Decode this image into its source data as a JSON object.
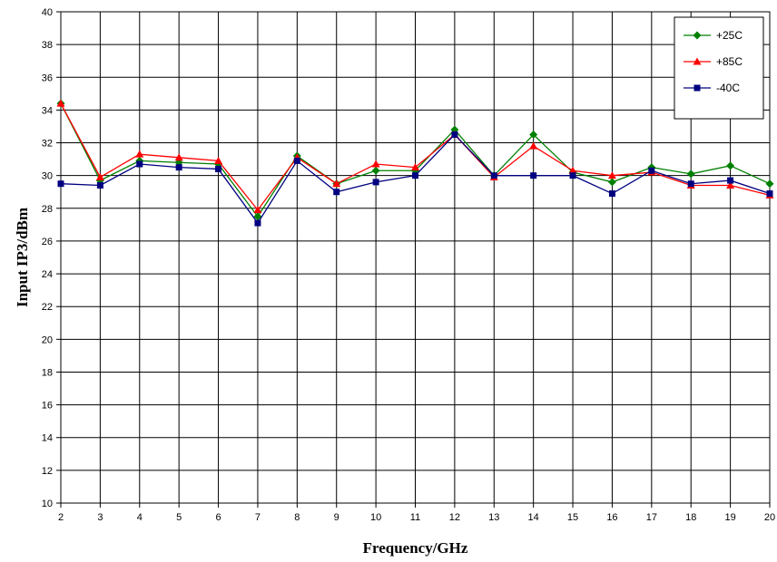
{
  "chart_data": {
    "type": "line",
    "title": "",
    "xlabel": "Frequency/GHz",
    "ylabel": "Input IP3/dBm",
    "x": [
      2,
      3,
      4,
      5,
      6,
      7,
      8,
      9,
      10,
      11,
      12,
      13,
      14,
      15,
      16,
      17,
      18,
      19,
      20
    ],
    "xlim": [
      2,
      20
    ],
    "ylim": [
      10,
      40
    ],
    "y_ticks": [
      10,
      12,
      14,
      16,
      18,
      20,
      22,
      24,
      26,
      28,
      30,
      32,
      34,
      36,
      38,
      40
    ],
    "grid": true,
    "legend_position": "top-right",
    "series": [
      {
        "name": "+25C",
        "color": "#008000",
        "marker": "diamond",
        "values": [
          34.4,
          29.7,
          30.9,
          30.8,
          30.7,
          27.5,
          31.2,
          29.5,
          30.3,
          30.3,
          32.8,
          30.0,
          32.5,
          30.2,
          29.6,
          30.5,
          30.1,
          30.6,
          29.5
        ]
      },
      {
        "name": "+85C",
        "color": "#ff0000",
        "marker": "triangle",
        "values": [
          34.4,
          29.9,
          31.3,
          31.1,
          30.9,
          27.9,
          31.1,
          29.5,
          30.7,
          30.5,
          32.5,
          29.9,
          31.8,
          30.3,
          30.0,
          30.2,
          29.4,
          29.4,
          28.8
        ]
      },
      {
        "name": "-40C",
        "color": "#000080",
        "marker": "square",
        "values": [
          29.5,
          29.4,
          30.7,
          30.5,
          30.4,
          27.1,
          30.9,
          29.0,
          29.6,
          30.0,
          32.5,
          30.0,
          30.0,
          30.0,
          28.9,
          30.3,
          29.5,
          29.7,
          28.9
        ]
      }
    ]
  }
}
